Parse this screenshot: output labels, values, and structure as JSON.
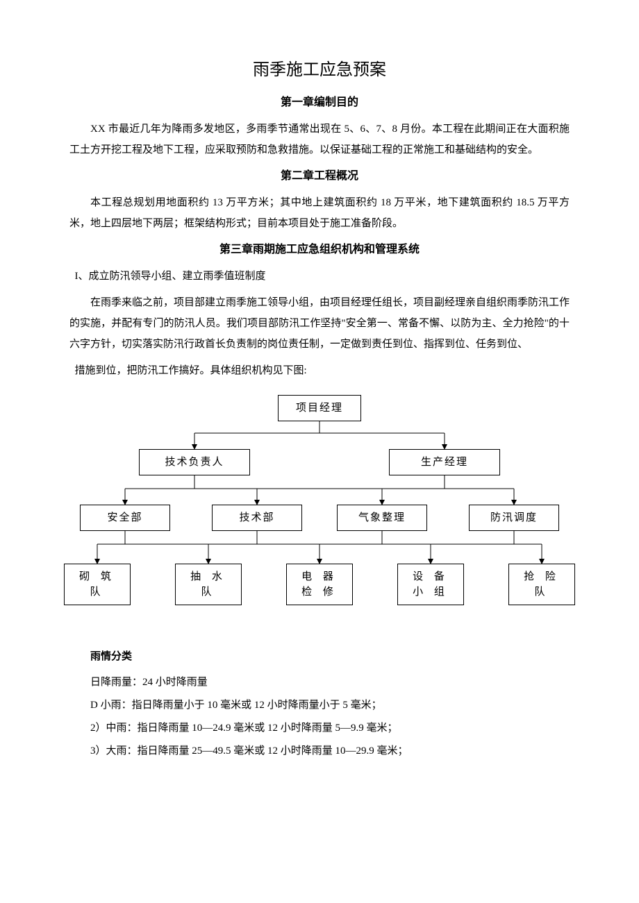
{
  "document": {
    "title": "雨季施工应急预案",
    "chapters": {
      "ch1": {
        "heading": "第一章编制目的",
        "p1": "XX 市最近几年为降雨多发地区，多雨季节通常出现在 5、6、7、8 月份。本工程在此期间正在大面积施工土方开挖工程及地下工程，应采取预防和急救措施。以保证基础工程的正常施工和基础结构的安全。"
      },
      "ch2": {
        "heading": "第二章工程概况",
        "p1": "本工程总规划用地面积约 13 万平方米；其中地上建筑面积约 18 万平米，地下建筑面积约 18.5 万平方米，地上四层地下两层；框架结构形式；目前本项目处于施工准备阶段。"
      },
      "ch3": {
        "heading": "第三章雨期施工应急组织机构和管理系统",
        "sec1_label": "I、成立防汛领导小组、建立雨季值班制度",
        "p1": "在雨季来临之前，项目部建立雨季施工领导小组，由项目经理任组长，项目副经理亲自组织雨季防汛工作的实施，并配有专门的防汛人员。我们项目部防汛工作坚持\"安全第一、常备不懈、以防为主、全力抢险\"的十六字方针，切实落实防汛行政首长负责制的岗位责任制，一定做到责任到位、指挥到位、任务到位、",
        "p2": "措施到位，把防汛工作搞好。具体组织机构见下图:"
      }
    },
    "org_chart": {
      "type": "tree",
      "node_border_color": "#000000",
      "node_bg_color": "#ffffff",
      "connector_color": "#000000",
      "arrow_fill": "#000000",
      "font_size": 15,
      "nodes": {
        "root": "项目经理",
        "l2a": "技术负责人",
        "l2b": "生产经理",
        "l3a": "安全部",
        "l3b": "技术部",
        "l3c": "气象整理",
        "l3d": "防汛调度",
        "l4a": "砌 筑\n队",
        "l4b": "抽 水\n队",
        "l4c": "电 器\n检 修",
        "l4d": "设 备\n小 组",
        "l4e": "抢 险\n队"
      }
    },
    "rain_classification": {
      "heading": "雨情分类",
      "intro": "日降雨量：24 小时降雨量",
      "items": {
        "r1": "D 小雨：指日降雨量小于 10 毫米或 12 小时降雨量小于 5 毫米；",
        "r2": "2）中雨：指日降雨量 10—24.9 毫米或 12 小时降雨量 5—9.9 毫米；",
        "r3": "3）大雨：指日降雨量 25—49.5 毫米或 12 小时降雨量 10—29.9 毫米；"
      }
    }
  }
}
